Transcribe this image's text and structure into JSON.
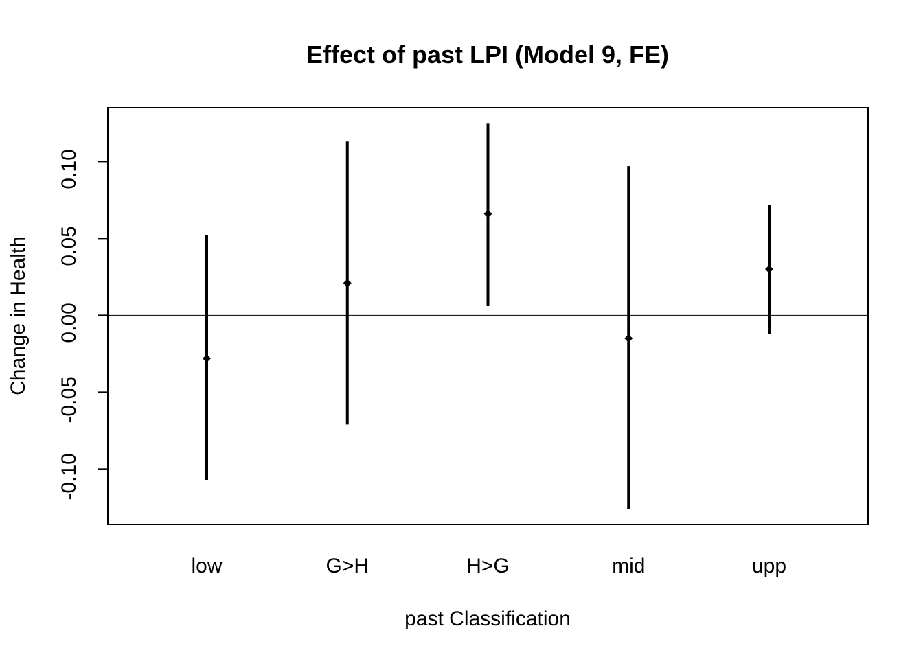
{
  "chart_data": {
    "type": "errorbar",
    "title": "Effect of past LPI (Model 9, FE)",
    "xlabel": "past Classification",
    "ylabel": "Change in Health",
    "categories": [
      "low",
      "G>H",
      "H>G",
      "mid",
      "upp"
    ],
    "estimates": [
      -0.028,
      0.021,
      0.066,
      -0.015,
      0.03
    ],
    "lower": [
      -0.107,
      -0.071,
      0.006,
      -0.126,
      -0.012
    ],
    "upper": [
      0.052,
      0.113,
      0.125,
      0.097,
      0.072
    ],
    "yticks": [
      -0.1,
      -0.05,
      0.0,
      0.05,
      0.1
    ],
    "ytick_labels": [
      "-0.10",
      "-0.05",
      "0.00",
      "0.05",
      "0.10"
    ],
    "ylim": [
      -0.136,
      0.135
    ],
    "reference_line": 0.0,
    "grid": false,
    "legend": "none",
    "color": "#000000"
  }
}
